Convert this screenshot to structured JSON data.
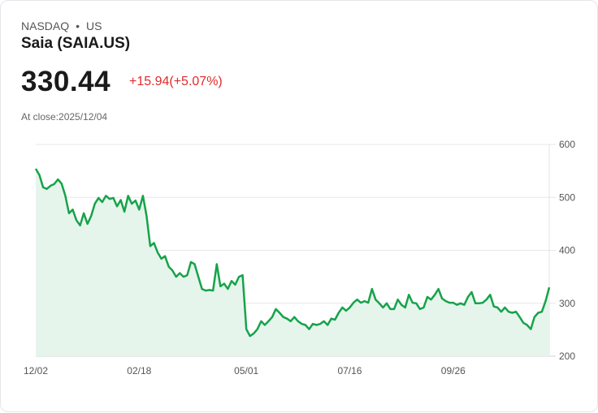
{
  "header": {
    "exchange": "NASDAQ",
    "separator": "•",
    "country": "US",
    "name": "Saia (SAIA.US)",
    "price": "330.44",
    "change": "+15.94(+5.07%)",
    "close_label": "At close:2025/12/04"
  },
  "colors": {
    "line": "#16a34a",
    "fill": "#e6f5ec",
    "change": "#e02a2a"
  },
  "chart_data": {
    "type": "area",
    "title": "Saia (SAIA.US)",
    "xlabel": "",
    "ylabel": "",
    "ylim": [
      200,
      600
    ],
    "y_ticks": [
      "600",
      "500",
      "400",
      "300",
      "200"
    ],
    "y_tick_values": [
      600,
      500,
      400,
      300,
      200
    ],
    "x_ticks": [
      {
        "label": "12/02",
        "index": 0
      },
      {
        "label": "02/18",
        "index": 28
      },
      {
        "label": "05/01",
        "index": 57
      },
      {
        "label": "07/16",
        "index": 85
      },
      {
        "label": "09/26",
        "index": 113
      }
    ],
    "grid": true,
    "values": [
      554,
      542,
      519,
      516,
      522,
      525,
      534,
      526,
      503,
      470,
      477,
      457,
      447,
      470,
      450,
      465,
      488,
      499,
      491,
      503,
      497,
      499,
      483,
      495,
      473,
      503,
      488,
      494,
      477,
      503,
      465,
      408,
      414,
      396,
      384,
      389,
      369,
      362,
      350,
      357,
      350,
      353,
      378,
      374,
      350,
      327,
      324,
      325,
      324,
      374,
      332,
      337,
      327,
      342,
      335,
      350,
      353,
      251,
      238,
      243,
      251,
      266,
      259,
      266,
      274,
      289,
      282,
      274,
      271,
      266,
      274,
      266,
      261,
      259,
      251,
      261,
      259,
      261,
      266,
      259,
      271,
      269,
      282,
      292,
      286,
      292,
      301,
      307,
      301,
      304,
      301,
      327,
      307,
      300,
      292,
      300,
      289,
      289,
      307,
      297,
      292,
      316,
      301,
      300,
      289,
      292,
      312,
      307,
      316,
      327,
      309,
      304,
      301,
      301,
      297,
      300,
      297,
      312,
      321,
      300,
      300,
      301,
      307,
      316,
      294,
      292,
      284,
      292,
      284,
      282,
      284,
      274,
      263,
      259,
      251,
      274,
      282,
      284,
      304,
      330
    ]
  }
}
